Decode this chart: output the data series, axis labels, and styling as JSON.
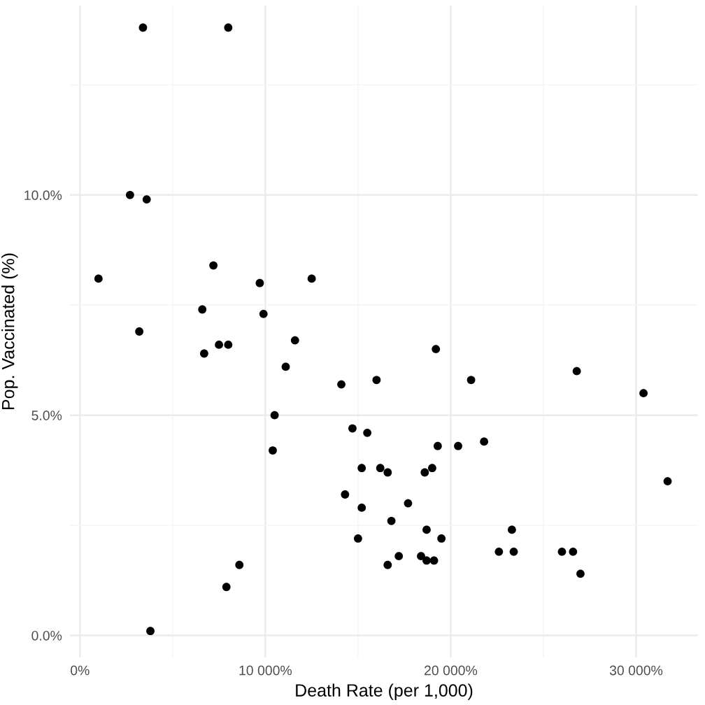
{
  "chart_data": {
    "type": "scatter",
    "xlabel": "Death Rate (per 1,000)",
    "ylabel": "Pop. Vaccinated (%)",
    "xlim": [
      -540,
      33340
    ],
    "ylim": [
      -0.5,
      14.3
    ],
    "xticks": [
      {
        "value": 0,
        "label": "0%"
      },
      {
        "value": 5000,
        "label": null
      },
      {
        "value": 10000,
        "label": "10 000%"
      },
      {
        "value": 15000,
        "label": null
      },
      {
        "value": 20000,
        "label": "20 000%"
      },
      {
        "value": 25000,
        "label": null
      },
      {
        "value": 30000,
        "label": "30 000%"
      }
    ],
    "yticks": [
      {
        "value": 0,
        "label": "0.0%"
      },
      {
        "value": 2.5,
        "label": null
      },
      {
        "value": 5,
        "label": "5.0%"
      },
      {
        "value": 7.5,
        "label": null
      },
      {
        "value": 10,
        "label": "10.0%"
      },
      {
        "value": 12.5,
        "label": null
      }
    ],
    "grid": true,
    "marker": "circle",
    "series": [
      {
        "color": "#000000",
        "x": [
          3400,
          8000,
          2700,
          3600,
          1000,
          7200,
          9700,
          12500,
          6600,
          9900,
          3200,
          6700,
          7500,
          8000,
          11600,
          11100,
          14100,
          16000,
          10500,
          14700,
          15500,
          10400,
          15200,
          16200,
          14300,
          15200,
          15000,
          8600,
          7900,
          3800,
          19200,
          21100,
          26800,
          30400,
          19300,
          20400,
          21800,
          16600,
          18600,
          19000,
          31700,
          17700,
          16800,
          18700,
          19500,
          23300,
          22600,
          23400,
          26000,
          26600,
          27000,
          17200,
          16600,
          18400,
          18700,
          19100
        ],
        "values": [
          13.8,
          13.8,
          10.0,
          9.9,
          8.1,
          8.4,
          8.0,
          8.1,
          7.4,
          7.3,
          6.9,
          6.4,
          6.6,
          6.6,
          6.7,
          6.1,
          5.7,
          5.8,
          5.0,
          4.7,
          4.6,
          4.2,
          3.8,
          3.8,
          3.2,
          2.9,
          2.2,
          1.6,
          1.1,
          0.1,
          6.5,
          5.8,
          6.0,
          5.5,
          4.3,
          4.3,
          4.4,
          3.7,
          3.7,
          3.8,
          3.5,
          3.0,
          2.6,
          2.4,
          2.2,
          2.4,
          1.9,
          1.9,
          1.9,
          1.9,
          1.4,
          1.8,
          1.6,
          1.8,
          1.7,
          1.7
        ]
      }
    ]
  }
}
